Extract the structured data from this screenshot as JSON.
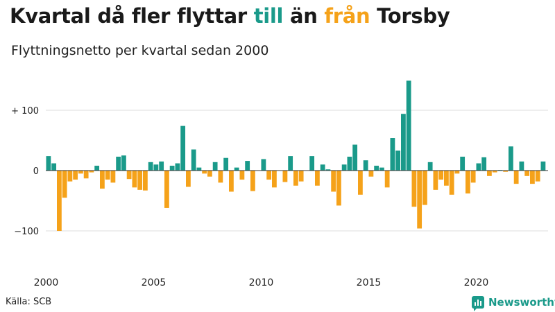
{
  "title": {
    "prefix": "Kvartal då fler flyttar ",
    "in_word": "till",
    "middle": " än ",
    "out_word": "från",
    "suffix": " Torsby"
  },
  "subtitle": "Flyttningsnetto per kvartal sedan 2000",
  "source": "Källa: SCB",
  "brand": "Newsworthy",
  "colors": {
    "positive": "#1a9a8a",
    "negative": "#f5a21a",
    "grid": "#dcdcdc"
  },
  "chart_data": {
    "type": "bar",
    "x_start": "2000 Q1",
    "ylim": [
      -150,
      150
    ],
    "yticks": [
      100,
      0,
      -100
    ],
    "ytick_labels": [
      "+ 100",
      "0",
      "−100"
    ],
    "xtick_labels": [
      "2000",
      "2005",
      "2010",
      "2015",
      "2020"
    ],
    "grid": true,
    "values": [
      24,
      12,
      -100,
      -45,
      -18,
      -15,
      -5,
      -13,
      -3,
      8,
      -30,
      -15,
      -20,
      23,
      25,
      -14,
      -28,
      -32,
      -33,
      14,
      10,
      15,
      -62,
      8,
      12,
      74,
      -27,
      35,
      5,
      -5,
      -10,
      14,
      -20,
      21,
      -35,
      5,
      -15,
      16,
      -34,
      0,
      19,
      -15,
      -28,
      0,
      -19,
      24,
      -25,
      -18,
      0,
      24,
      -25,
      10,
      2,
      -35,
      -58,
      10,
      23,
      43,
      -40,
      17,
      -10,
      8,
      5,
      -28,
      54,
      33,
      94,
      149,
      -60,
      -96,
      -57,
      14,
      -32,
      -15,
      -25,
      -40,
      -5,
      23,
      -38,
      -20,
      12,
      22,
      -9,
      -3,
      1,
      -2,
      40,
      -22,
      15,
      -9,
      -22,
      -18,
      15
    ]
  }
}
